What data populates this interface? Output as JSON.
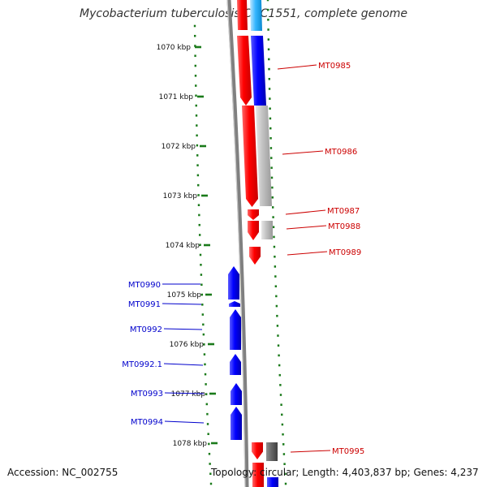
{
  "title": "Mycobacterium tuberculosis CDC1551, complete genome",
  "footer": {
    "accession": "Accession: NC_002755",
    "summary": "Topology: circular; Length: 4,403,837 bp; Genes: 4,237"
  },
  "colors": {
    "forward_gene": "#ff0000",
    "reverse_gene": "#0000ff",
    "cds_forward": "#0000ee",
    "cds_reverse": "#bfbfbf",
    "ruler": "#1a7a1a",
    "backbone": "#808080",
    "label_forward": "#cc0000",
    "label_reverse": "#0000cc"
  },
  "ruler": {
    "unit": "kbp",
    "ticks": [
      "1070 kbp",
      "1071 kbp",
      "1072 kbp",
      "1073 kbp",
      "1074 kbp",
      "1075 kbp",
      "1076 kbp",
      "1077 kbp",
      "1078 kbp"
    ]
  },
  "genes": [
    {
      "label": "MT0985",
      "strand": "+",
      "color": "red",
      "cds": "blue"
    },
    {
      "label": "MT0986",
      "strand": "+",
      "color": "red",
      "cds": "gray"
    },
    {
      "label": "MT0987",
      "strand": "+",
      "color": "red",
      "cds": "gray"
    },
    {
      "label": "MT0988",
      "strand": "+",
      "color": "red",
      "cds": "gray"
    },
    {
      "label": "MT0989",
      "strand": "+",
      "color": "red",
      "cds": "none"
    },
    {
      "label": "MT0990",
      "strand": "-",
      "color": "blue"
    },
    {
      "label": "MT0991",
      "strand": "-",
      "color": "blue"
    },
    {
      "label": "MT0992",
      "strand": "-",
      "color": "blue"
    },
    {
      "label": "MT0992.1",
      "strand": "-",
      "color": "blue"
    },
    {
      "label": "MT0993",
      "strand": "-",
      "color": "blue"
    },
    {
      "label": "MT0994",
      "strand": "-",
      "color": "blue"
    },
    {
      "label": "MT0995",
      "strand": "+",
      "color": "red",
      "cds": "darkgray"
    }
  ]
}
